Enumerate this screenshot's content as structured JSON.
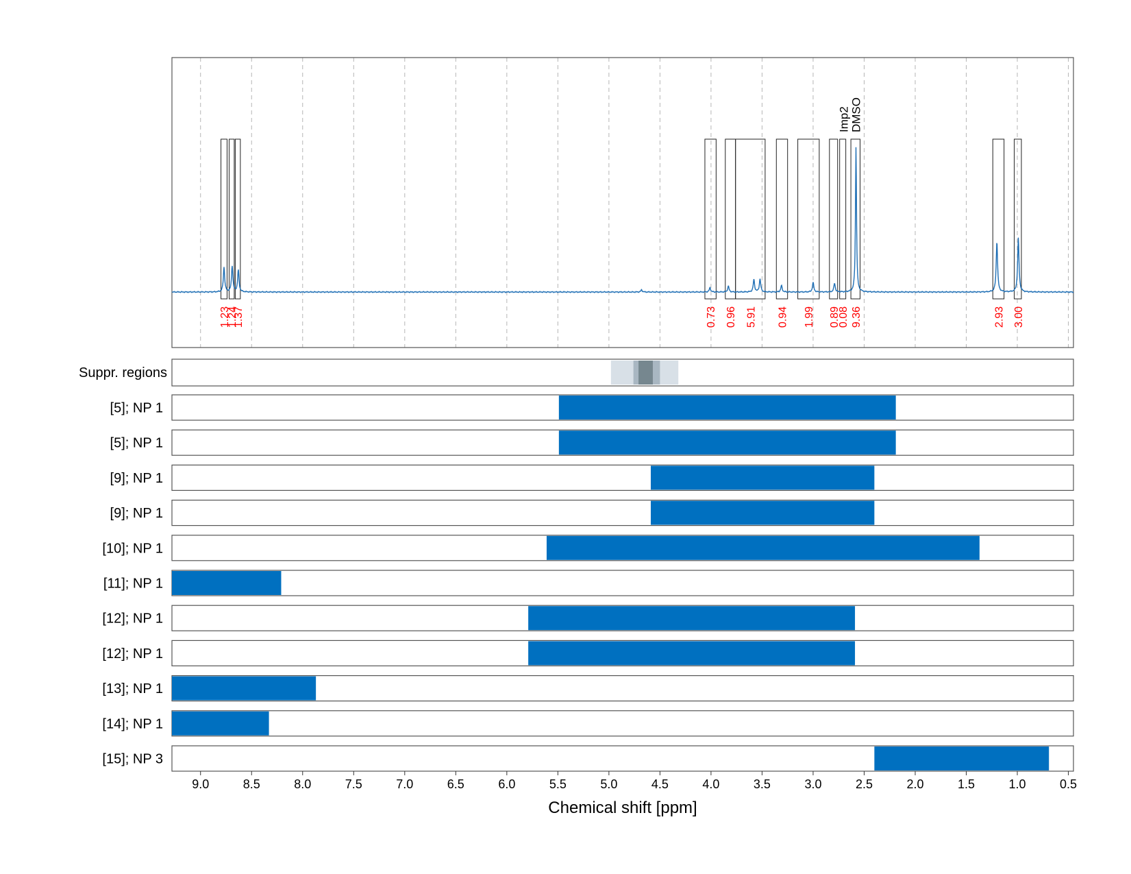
{
  "chart_data": {
    "type": "line",
    "xlabel": "Chemical shift [ppm]",
    "ylabel": "",
    "title": "",
    "xlim": [
      9.28,
      0.45
    ],
    "x_ticks": [
      9.0,
      8.5,
      8.0,
      7.5,
      7.0,
      6.5,
      6.0,
      5.5,
      5.0,
      4.5,
      4.0,
      3.5,
      3.0,
      2.5,
      2.0,
      1.5,
      1.0,
      0.5
    ],
    "x_tick_labels": [
      "9.0",
      "8.5",
      "8.0",
      "7.5",
      "7.0",
      "6.5",
      "6.0",
      "5.5",
      "5.0",
      "4.5",
      "4.0",
      "3.5",
      "3.0",
      "2.5",
      "2.0",
      "1.5",
      "1.0",
      "0.5"
    ],
    "grid": "vertical dashed",
    "spectrum_color": "#1f6fb5",
    "bar_color": "#0070c0",
    "integral_color": "#ff0000",
    "peaks": [
      {
        "ppm": 8.77,
        "height": 0.17
      },
      {
        "ppm": 8.69,
        "height": 0.18
      },
      {
        "ppm": 8.63,
        "height": 0.15
      },
      {
        "ppm": 4.68,
        "height": 0.015
      },
      {
        "ppm": 4.01,
        "height": 0.03
      },
      {
        "ppm": 3.83,
        "height": 0.04
      },
      {
        "ppm": 3.58,
        "height": 0.085
      },
      {
        "ppm": 3.52,
        "height": 0.09
      },
      {
        "ppm": 3.31,
        "height": 0.045
      },
      {
        "ppm": 3.0,
        "height": 0.065
      },
      {
        "ppm": 2.79,
        "height": 0.06
      },
      {
        "ppm": 2.58,
        "height": 1.0
      },
      {
        "ppm": 1.2,
        "height": 0.35
      },
      {
        "ppm": 0.99,
        "height": 0.37
      }
    ],
    "integrals": [
      {
        "from": 8.8,
        "to": 8.74,
        "label": "1.23"
      },
      {
        "from": 8.72,
        "to": 8.67,
        "label": "1.24"
      },
      {
        "from": 8.66,
        "to": 8.61,
        "label": "1.37"
      },
      {
        "from": 4.06,
        "to": 3.95,
        "label": "0.73"
      },
      {
        "from": 3.86,
        "to": 3.76,
        "label": "0.96"
      },
      {
        "from": 3.76,
        "to": 3.47,
        "label": "5.91"
      },
      {
        "from": 3.36,
        "to": 3.25,
        "label": "0.94"
      },
      {
        "from": 3.15,
        "to": 2.94,
        "label": "1.99"
      },
      {
        "from": 2.84,
        "to": 2.76,
        "label": "0.89"
      },
      {
        "from": 2.74,
        "to": 2.68,
        "label": "0.08"
      },
      {
        "from": 2.63,
        "to": 2.54,
        "label": "9.36"
      },
      {
        "from": 1.24,
        "to": 1.13,
        "label": "2.93"
      },
      {
        "from": 1.03,
        "to": 0.96,
        "label": "3.00"
      }
    ],
    "annotations": [
      {
        "ppm": 2.7,
        "label": "Imp2"
      },
      {
        "ppm": 2.58,
        "label": "DMSO"
      }
    ],
    "suppressed_regions": {
      "label": "Suppr. regions",
      "regions": [
        {
          "from": 4.98,
          "to": 4.32,
          "shade": "#d8e0e7"
        },
        {
          "from": 4.76,
          "to": 4.5,
          "shade": "#a9b7c2"
        },
        {
          "from": 4.71,
          "to": 4.57,
          "shade": "#76878f"
        }
      ]
    },
    "range_rows": [
      {
        "label": "[5]; NP 1",
        "from": 5.49,
        "to": 2.19
      },
      {
        "label": "[5]; NP 1",
        "from": 5.49,
        "to": 2.19
      },
      {
        "label": "[9]; NP 1",
        "from": 4.59,
        "to": 2.4
      },
      {
        "label": "[9]; NP 1",
        "from": 4.59,
        "to": 2.4
      },
      {
        "label": "[10]; NP 1",
        "from": 5.61,
        "to": 1.37
      },
      {
        "label": "[11]; NP 1",
        "from": 9.28,
        "to": 8.21
      },
      {
        "label": "[12]; NP 1",
        "from": 5.79,
        "to": 2.59
      },
      {
        "label": "[12]; NP 1",
        "from": 5.79,
        "to": 2.59
      },
      {
        "label": "[13]; NP 1",
        "from": 9.28,
        "to": 7.87
      },
      {
        "label": "[14]; NP 1",
        "from": 9.28,
        "to": 8.33
      },
      {
        "label": "[15]; NP 3",
        "from": 2.4,
        "to": 0.69
      }
    ]
  }
}
